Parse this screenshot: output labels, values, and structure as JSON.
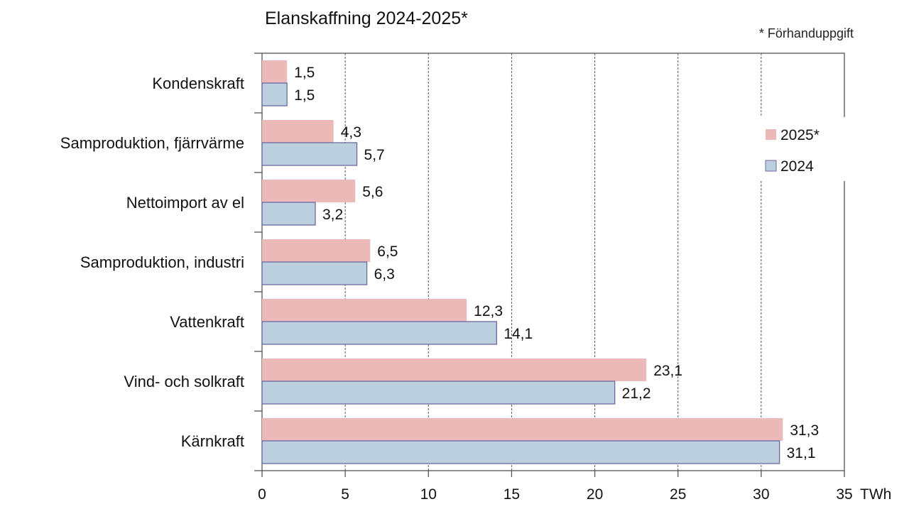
{
  "chart_data": {
    "type": "bar",
    "orientation": "horizontal",
    "title": "Elanskaffning  2024-2025*",
    "note": "* Förhanduppgift",
    "x_unit": "TWh",
    "xlim": [
      0,
      35
    ],
    "x_ticks": [
      "0",
      "5",
      "10",
      "15",
      "20",
      "25",
      "30",
      "35"
    ],
    "grid": "vertical-dashed",
    "legend_position": "right",
    "categories": [
      "Kondenskraft",
      "Samproduktion, fjärrvärme",
      "Nettoimport av el",
      "Samproduktion, industri",
      "Vattenkraft",
      "Vind- och solkraft",
      "Kärnkraft"
    ],
    "series": [
      {
        "name": "2025*",
        "color": "#ebb9b7",
        "values": [
          1.5,
          4.3,
          5.6,
          6.5,
          12.3,
          23.1,
          31.3
        ],
        "labels": [
          "1,5",
          "4,3",
          "5,6",
          "6,5",
          "12,3",
          "23,1",
          "31,3"
        ]
      },
      {
        "name": "2024",
        "color": "#bccfdf",
        "values": [
          1.5,
          5.7,
          3.2,
          6.3,
          14.1,
          21.2,
          31.1
        ],
        "labels": [
          "1,5",
          "5,7",
          "3,2",
          "6,3",
          "14,1",
          "21,2",
          "31,1"
        ]
      }
    ]
  }
}
